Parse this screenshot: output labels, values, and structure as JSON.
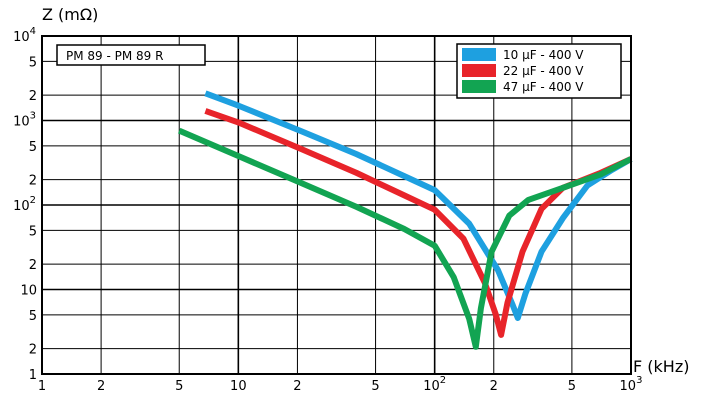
{
  "chart_data": {
    "type": "line",
    "ylabel": "Z (mΩ)",
    "xlabel": "F (kHz)",
    "annotation": "PM 89 - PM 89 R",
    "x_scale": "log",
    "y_scale": "log",
    "xlim": [
      1,
      1000
    ],
    "ylim": [
      1,
      10000
    ],
    "grid": true,
    "legend_position": "top-right",
    "x_ticks": [
      {
        "value": 1,
        "base": "1",
        "exp": ""
      },
      {
        "value": 2,
        "base": "2",
        "exp": ""
      },
      {
        "value": 5,
        "base": "5",
        "exp": ""
      },
      {
        "value": 10,
        "base": "10",
        "exp": ""
      },
      {
        "value": 20,
        "base": "2",
        "exp": ""
      },
      {
        "value": 50,
        "base": "5",
        "exp": ""
      },
      {
        "value": 100,
        "base": "10",
        "exp": "2"
      },
      {
        "value": 200,
        "base": "2",
        "exp": ""
      },
      {
        "value": 500,
        "base": "5",
        "exp": ""
      },
      {
        "value": 1000,
        "base": "10",
        "exp": "3"
      }
    ],
    "y_ticks": [
      {
        "value": 1,
        "base": "1",
        "exp": ""
      },
      {
        "value": 2,
        "base": "2",
        "exp": ""
      },
      {
        "value": 5,
        "base": "5",
        "exp": ""
      },
      {
        "value": 10,
        "base": "10",
        "exp": ""
      },
      {
        "value": 20,
        "base": "2",
        "exp": ""
      },
      {
        "value": 50,
        "base": "5",
        "exp": ""
      },
      {
        "value": 100,
        "base": "10",
        "exp": "2"
      },
      {
        "value": 200,
        "base": "2",
        "exp": ""
      },
      {
        "value": 500,
        "base": "5",
        "exp": ""
      },
      {
        "value": 1000,
        "base": "10",
        "exp": "3"
      },
      {
        "value": 2000,
        "base": "2",
        "exp": ""
      },
      {
        "value": 5000,
        "base": "5",
        "exp": ""
      },
      {
        "value": 10000,
        "base": "10",
        "exp": "4"
      }
    ],
    "series": [
      {
        "name": "10 µF - 400 V",
        "color": "#1ea0e0",
        "points": [
          [
            6.8,
            2100
          ],
          [
            10,
            1500
          ],
          [
            20,
            780
          ],
          [
            40,
            400
          ],
          [
            70,
            220
          ],
          [
            100,
            150
          ],
          [
            150,
            60
          ],
          [
            210,
            17
          ],
          [
            250,
            6.5
          ],
          [
            265,
            4.6
          ],
          [
            290,
            9
          ],
          [
            350,
            28
          ],
          [
            450,
            70
          ],
          [
            600,
            170
          ],
          [
            800,
            260
          ],
          [
            1000,
            350
          ]
        ]
      },
      {
        "name": "22 µF - 400 V",
        "color": "#e8242a",
        "points": [
          [
            6.8,
            1300
          ],
          [
            10,
            950
          ],
          [
            20,
            480
          ],
          [
            40,
            240
          ],
          [
            70,
            130
          ],
          [
            100,
            88
          ],
          [
            140,
            40
          ],
          [
            180,
            12
          ],
          [
            205,
            5
          ],
          [
            218,
            2.9
          ],
          [
            235,
            7
          ],
          [
            280,
            28
          ],
          [
            350,
            90
          ],
          [
            450,
            160
          ],
          [
            700,
            240
          ],
          [
            1000,
            350
          ]
        ]
      },
      {
        "name": "47 µF - 400 V",
        "color": "#12a452",
        "points": [
          [
            5,
            760
          ],
          [
            10,
            380
          ],
          [
            20,
            190
          ],
          [
            40,
            95
          ],
          [
            70,
            52
          ],
          [
            100,
            33
          ],
          [
            125,
            14
          ],
          [
            150,
            4.5
          ],
          [
            162,
            2.1
          ],
          [
            172,
            6
          ],
          [
            195,
            28
          ],
          [
            240,
            75
          ],
          [
            300,
            115
          ],
          [
            450,
            160
          ],
          [
            700,
            230
          ],
          [
            1000,
            350
          ]
        ]
      }
    ]
  }
}
